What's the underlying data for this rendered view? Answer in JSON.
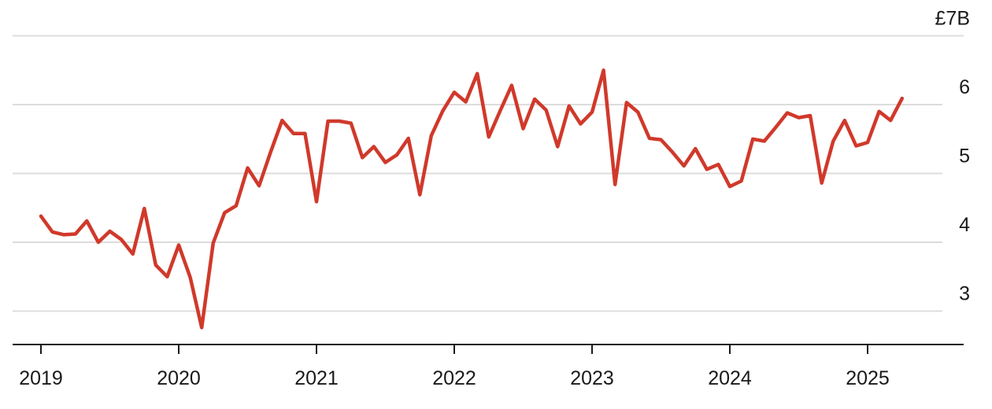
{
  "chart_data": {
    "type": "line",
    "title": "",
    "xlabel": "",
    "ylabel": "",
    "x_range": [
      2019,
      2025.5
    ],
    "ylim": [
      2.5,
      7
    ],
    "y_ticks": [
      {
        "value": 7,
        "label": "£7B"
      },
      {
        "value": 6,
        "label": "6"
      },
      {
        "value": 5,
        "label": "5"
      },
      {
        "value": 4,
        "label": "4"
      },
      {
        "value": 3,
        "label": "3"
      }
    ],
    "x_ticks": [
      {
        "value": 2019,
        "label": "2019"
      },
      {
        "value": 2020,
        "label": "2020"
      },
      {
        "value": 2021,
        "label": "2021"
      },
      {
        "value": 2022,
        "label": "2022"
      },
      {
        "value": 2023,
        "label": "2023"
      },
      {
        "value": 2024,
        "label": "2024"
      },
      {
        "value": 2025,
        "label": "2025"
      }
    ],
    "grid": true,
    "legend": "none",
    "series": [
      {
        "color": "#d0392b",
        "points": [
          [
            "2019-01",
            4.38
          ],
          [
            "2019-02",
            4.15
          ],
          [
            "2019-03",
            4.11
          ],
          [
            "2019-04",
            4.12
          ],
          [
            "2019-05",
            4.31
          ],
          [
            "2019-06",
            4.0
          ],
          [
            "2019-07",
            4.16
          ],
          [
            "2019-08",
            4.04
          ],
          [
            "2019-09",
            3.83
          ],
          [
            "2019-10",
            4.49
          ],
          [
            "2019-11",
            3.67
          ],
          [
            "2019-12",
            3.5
          ],
          [
            "2020-01",
            3.96
          ],
          [
            "2020-02",
            3.49
          ],
          [
            "2020-03",
            2.76
          ],
          [
            "2020-04",
            3.99
          ],
          [
            "2020-05",
            4.43
          ],
          [
            "2020-06",
            4.53
          ],
          [
            "2020-07",
            5.08
          ],
          [
            "2020-08",
            4.82
          ],
          [
            "2020-09",
            5.31
          ],
          [
            "2020-10",
            5.77
          ],
          [
            "2020-11",
            5.58
          ],
          [
            "2020-12",
            5.58
          ],
          [
            "2021-01",
            4.59
          ],
          [
            "2021-02",
            5.76
          ],
          [
            "2021-03",
            5.76
          ],
          [
            "2021-04",
            5.73
          ],
          [
            "2021-05",
            5.23
          ],
          [
            "2021-06",
            5.39
          ],
          [
            "2021-07",
            5.16
          ],
          [
            "2021-08",
            5.27
          ],
          [
            "2021-09",
            5.51
          ],
          [
            "2021-10",
            4.69
          ],
          [
            "2021-11",
            5.55
          ],
          [
            "2021-12",
            5.91
          ],
          [
            "2022-01",
            6.18
          ],
          [
            "2022-02",
            6.04
          ],
          [
            "2022-03",
            6.45
          ],
          [
            "2022-04",
            5.53
          ],
          [
            "2022-05",
            5.91
          ],
          [
            "2022-06",
            6.28
          ],
          [
            "2022-07",
            5.65
          ],
          [
            "2022-08",
            6.08
          ],
          [
            "2022-09",
            5.92
          ],
          [
            "2022-10",
            5.39
          ],
          [
            "2022-11",
            5.98
          ],
          [
            "2022-12",
            5.72
          ],
          [
            "2023-01",
            5.89
          ],
          [
            "2023-02",
            6.5
          ],
          [
            "2023-03",
            4.84
          ],
          [
            "2023-04",
            6.03
          ],
          [
            "2023-05",
            5.89
          ],
          [
            "2023-06",
            5.51
          ],
          [
            "2023-07",
            5.49
          ],
          [
            "2023-08",
            5.31
          ],
          [
            "2023-09",
            5.11
          ],
          [
            "2023-10",
            5.36
          ],
          [
            "2023-11",
            5.06
          ],
          [
            "2023-12",
            5.13
          ],
          [
            "2024-01",
            4.81
          ],
          [
            "2024-02",
            4.89
          ],
          [
            "2024-03",
            5.5
          ],
          [
            "2024-04",
            5.47
          ],
          [
            "2024-05",
            5.67
          ],
          [
            "2024-06",
            5.88
          ],
          [
            "2024-07",
            5.81
          ],
          [
            "2024-08",
            5.84
          ],
          [
            "2024-09",
            4.86
          ],
          [
            "2024-10",
            5.47
          ],
          [
            "2024-11",
            5.77
          ],
          [
            "2024-12",
            5.4
          ],
          [
            "2025-01",
            5.45
          ],
          [
            "2025-02",
            5.9
          ],
          [
            "2025-03",
            5.77
          ],
          [
            "2025-04",
            6.09
          ]
        ]
      }
    ]
  }
}
